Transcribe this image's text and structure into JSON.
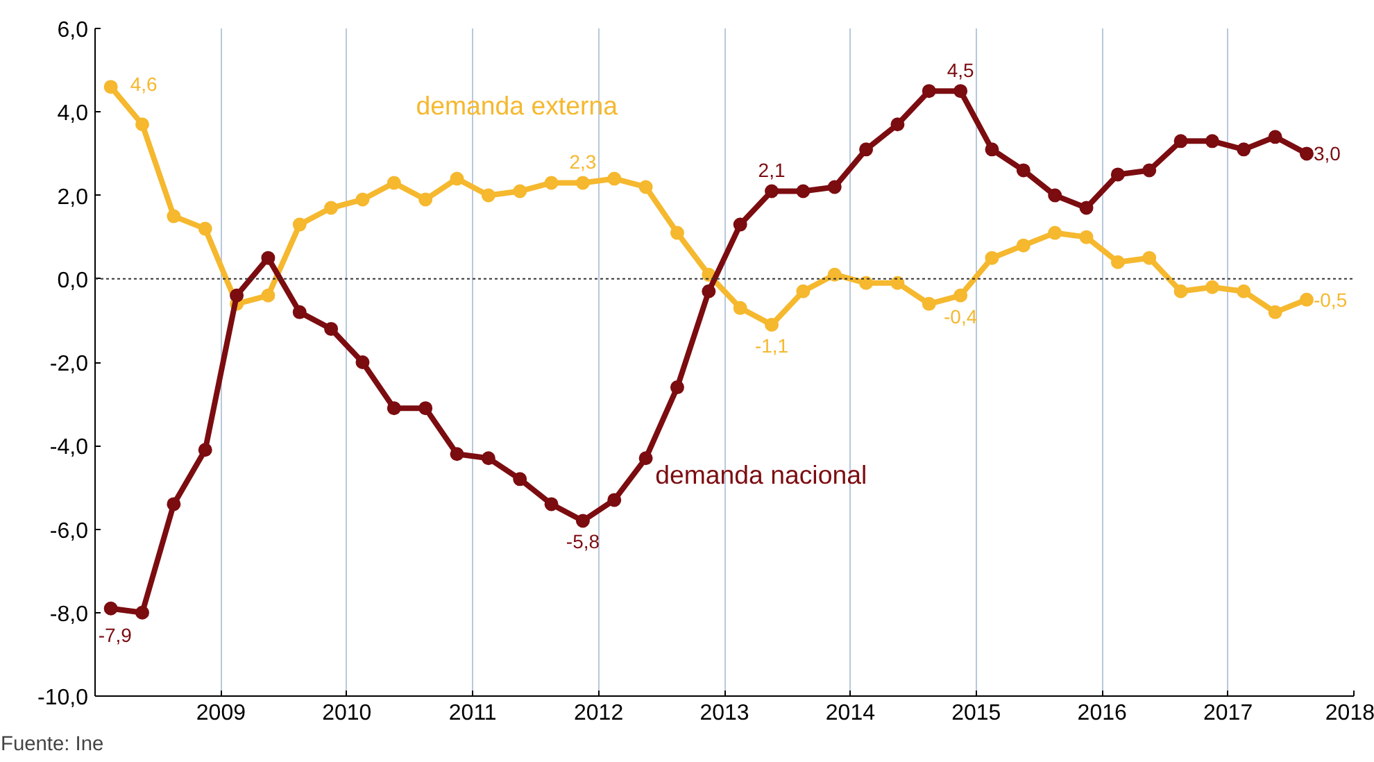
{
  "chart_data": {
    "type": "line",
    "x": [
      2008.125,
      2008.375,
      2008.625,
      2008.875,
      2009.125,
      2009.375,
      2009.625,
      2009.875,
      2010.125,
      2010.375,
      2010.625,
      2010.875,
      2011.125,
      2011.375,
      2011.625,
      2011.875,
      2012.125,
      2012.375,
      2012.625,
      2012.875,
      2013.125,
      2013.375,
      2013.625,
      2013.875,
      2014.125,
      2014.375,
      2014.625,
      2014.875,
      2015.125,
      2015.375,
      2015.625,
      2015.875,
      2016.125,
      2016.375,
      2016.625,
      2016.875,
      2017.125,
      2017.375,
      2017.625
    ],
    "series": [
      {
        "name": "demanda nacional",
        "color": "#7b0c10",
        "values": [
          -7.9,
          -8.0,
          -5.4,
          -4.1,
          -0.4,
          0.5,
          -0.8,
          -1.2,
          -2.0,
          -3.1,
          -3.1,
          -4.2,
          -4.3,
          -4.8,
          -5.4,
          -5.8,
          -5.3,
          -4.3,
          -2.6,
          -0.3,
          1.3,
          2.1,
          2.1,
          2.2,
          3.1,
          3.7,
          4.5,
          4.5,
          3.1,
          2.6,
          2.0,
          1.7,
          2.5,
          2.6,
          3.3,
          3.3,
          3.1,
          3.4,
          3.0
        ],
        "value_labels": [
          "-7,9",
          null,
          null,
          null,
          null,
          null,
          null,
          null,
          null,
          null,
          null,
          null,
          null,
          null,
          null,
          "-5,8",
          null,
          null,
          null,
          null,
          null,
          "2,1",
          null,
          null,
          null,
          null,
          null,
          "4,5",
          null,
          null,
          null,
          null,
          null,
          null,
          null,
          null,
          null,
          null,
          "3,0"
        ]
      },
      {
        "name": "demanda externa",
        "color": "#f5b82e",
        "values": [
          4.6,
          3.7,
          1.5,
          1.2,
          -0.6,
          -0.4,
          1.3,
          1.7,
          1.9,
          2.3,
          1.9,
          2.4,
          2.0,
          2.1,
          2.3,
          2.3,
          2.4,
          2.2,
          1.1,
          0.1,
          -0.7,
          -1.1,
          -0.3,
          0.1,
          -0.1,
          -0.1,
          -0.6,
          -0.4,
          0.5,
          0.8,
          1.1,
          1.0,
          0.4,
          0.5,
          -0.3,
          -0.2,
          -0.3,
          -0.8,
          -0.5
        ],
        "value_labels": [
          "4,6",
          null,
          null,
          null,
          null,
          null,
          null,
          null,
          null,
          null,
          null,
          null,
          null,
          null,
          null,
          "2,3",
          null,
          null,
          null,
          null,
          null,
          "-1,1",
          null,
          null,
          null,
          null,
          null,
          "-0,4",
          null,
          null,
          null,
          null,
          null,
          null,
          null,
          null,
          null,
          null,
          "-0,5"
        ]
      }
    ],
    "xlim": [
      2008,
      2018
    ],
    "xticks": [
      2009,
      2010,
      2011,
      2012,
      2013,
      2014,
      2015,
      2016,
      2017,
      2018
    ],
    "ylim": [
      -10,
      6
    ],
    "yticks": [
      {
        "value": -10,
        "label": "-10,0"
      },
      {
        "value": -8,
        "label": "-8,0"
      },
      {
        "value": -6,
        "label": "-6,0"
      },
      {
        "value": -4,
        "label": "-4,0"
      },
      {
        "value": -2,
        "label": "-2,0"
      },
      {
        "value": 0,
        "label": "0,0"
      },
      {
        "value": 2,
        "label": "2,0"
      },
      {
        "value": 4,
        "label": "4,0"
      },
      {
        "value": 6,
        "label": "6,0"
      }
    ],
    "ref_lines": [
      {
        "axis": "y",
        "value": 0,
        "label": null,
        "color": "#333333",
        "line_style": "dotted"
      }
    ],
    "grid": "x",
    "legend": false,
    "marker": "circle",
    "line_style": "solid",
    "annotations": [
      "Fuente: Ine"
    ]
  }
}
